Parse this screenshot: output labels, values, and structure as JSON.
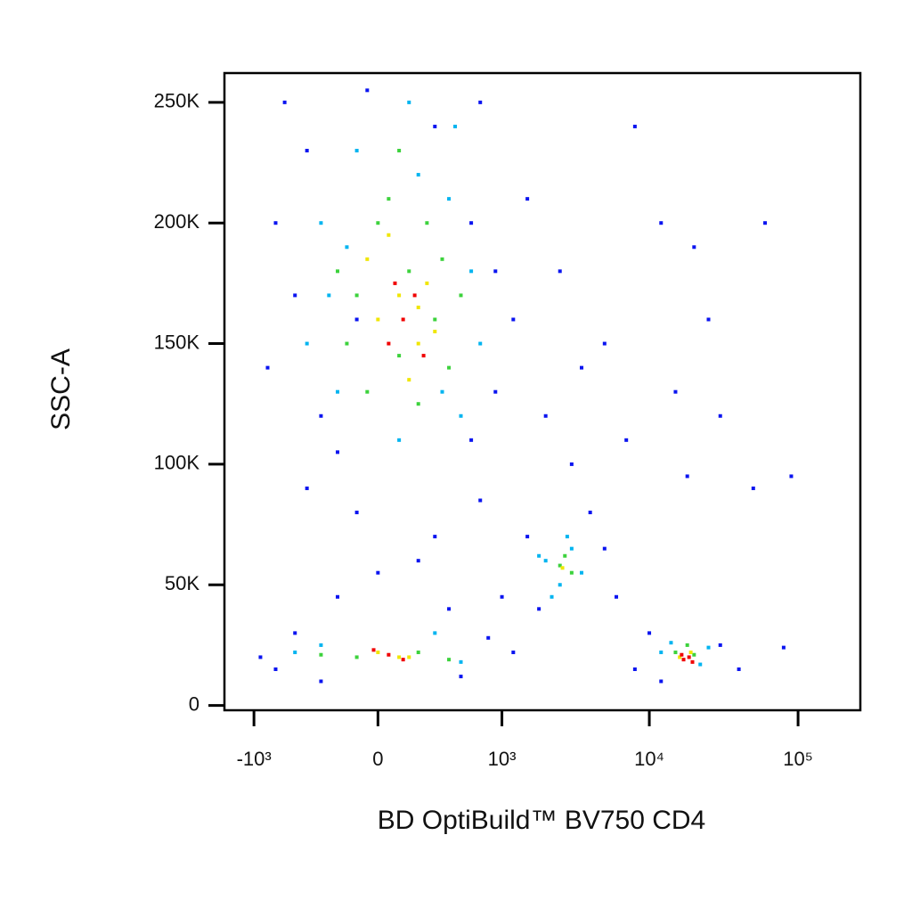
{
  "chart_data": {
    "type": "scatter",
    "x_label": "BD OptiBuild™ BV750 CD4",
    "y_label": "SSC-A",
    "x_scale": "biexponential",
    "xlim": [
      -1600,
      262144
    ],
    "ylim": [
      -2000,
      262144
    ],
    "xticks": [
      {
        "value": -1000,
        "label": "-10³"
      },
      0,
      {
        "value": 1000,
        "label": "10³"
      },
      {
        "value": 10000,
        "label": "10⁴"
      },
      {
        "value": 100000,
        "label": "10⁵"
      }
    ],
    "yticks": [
      0,
      {
        "value": 50000,
        "label": "50K"
      },
      {
        "value": 100000,
        "label": "100K"
      },
      {
        "value": 150000,
        "label": "150K"
      },
      {
        "value": 200000,
        "label": "200K"
      },
      {
        "value": 250000,
        "label": "250K"
      }
    ],
    "series": [
      {
        "color": "#0a14f0",
        "x": [
          -600,
          -400,
          -700,
          -500,
          -800,
          -300,
          -200,
          600,
          900,
          1200,
          1500,
          2500,
          5000,
          8000,
          12000,
          20000,
          30000,
          60000,
          90000,
          -400,
          -100,
          300,
          700,
          1000,
          1500,
          1800,
          5000,
          6000,
          4000,
          10000,
          8000,
          12000,
          30000,
          40000,
          80000,
          -900,
          -700,
          -500,
          -300,
          500,
          800,
          1200,
          400,
          -200,
          0,
          200,
          -100,
          600,
          700,
          -50,
          300,
          900,
          2000,
          3000,
          15000,
          25000,
          18000,
          50000,
          3500,
          7000
        ],
        "values": [
          250000,
          230000,
          200000,
          170000,
          140000,
          120000,
          105000,
          110000,
          130000,
          160000,
          210000,
          180000,
          150000,
          240000,
          200000,
          190000,
          120000,
          200000,
          95000,
          90000,
          80000,
          70000,
          85000,
          45000,
          70000,
          40000,
          65000,
          45000,
          80000,
          30000,
          15000,
          10000,
          25000,
          15000,
          24000,
          20000,
          15000,
          30000,
          10000,
          12000,
          28000,
          22000,
          40000,
          45000,
          55000,
          60000,
          160000,
          200000,
          250000,
          255000,
          240000,
          180000,
          120000,
          100000,
          130000,
          160000,
          95000,
          90000,
          140000,
          110000
        ]
      },
      {
        "color": "#00b4f0",
        "x": [
          -300,
          -200,
          500,
          600,
          -100,
          200,
          450,
          -250,
          700,
          -400,
          2000,
          3000,
          2500,
          3500,
          2200,
          1800,
          2800,
          -300,
          500,
          300,
          -500,
          14000,
          22000,
          12000,
          25000,
          100,
          350,
          -150,
          400,
          150
        ],
        "values": [
          200000,
          130000,
          120000,
          180000,
          230000,
          220000,
          240000,
          170000,
          150000,
          150000,
          60000,
          65000,
          50000,
          55000,
          45000,
          62000,
          70000,
          25000,
          18000,
          30000,
          22000,
          26000,
          17000,
          22000,
          24000,
          110000,
          130000,
          190000,
          210000,
          250000
        ]
      },
      {
        "color": "#3cd23c",
        "x": [
          0,
          150,
          -150,
          300,
          250,
          -50,
          400,
          100,
          -200,
          500,
          200,
          2500,
          3000,
          2700,
          -100,
          200,
          400,
          -300,
          15000,
          20000,
          18000,
          50,
          -100,
          350,
          100
        ],
        "values": [
          200000,
          180000,
          150000,
          160000,
          200000,
          130000,
          140000,
          230000,
          180000,
          170000,
          125000,
          58000,
          55000,
          62000,
          20000,
          22000,
          19000,
          21000,
          22000,
          21000,
          25000,
          210000,
          170000,
          185000,
          145000
        ]
      },
      {
        "color": "#f0e600",
        "x": [
          100,
          200,
          0,
          250,
          -50,
          150,
          300,
          50,
          0,
          150,
          16000,
          19000,
          100,
          2600,
          200
        ],
        "values": [
          170000,
          150000,
          160000,
          175000,
          185000,
          135000,
          155000,
          195000,
          22000,
          20000,
          20000,
          22000,
          20000,
          57000,
          165000
        ]
      },
      {
        "color": "#f00000",
        "x": [
          120,
          180,
          50,
          230,
          80,
          50,
          120,
          -20,
          17000,
          18500,
          16500,
          19500
        ],
        "values": [
          160000,
          170000,
          150000,
          145000,
          175000,
          21000,
          19000,
          23000,
          19000,
          20000,
          21000,
          18000
        ]
      }
    ]
  }
}
